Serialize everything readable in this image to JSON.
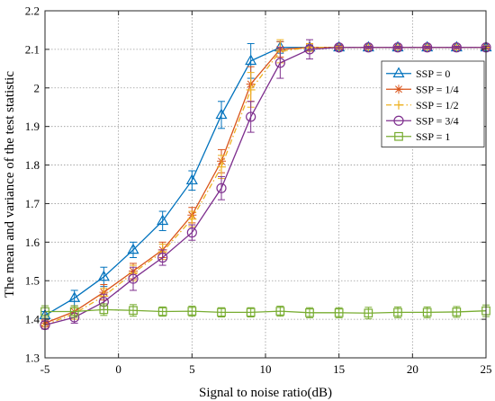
{
  "chart_data": {
    "type": "line",
    "title": "",
    "xlabel": "Signal to noise ratio(dB)",
    "ylabel": "The mean and variance of the test statistic",
    "xlim": [
      -5,
      25
    ],
    "ylim": [
      1.3,
      2.2
    ],
    "xticks": [
      -5,
      0,
      5,
      10,
      15,
      20,
      25
    ],
    "yticks": [
      1.3,
      1.4,
      1.5,
      1.6,
      1.7,
      1.8,
      1.9,
      2.0,
      2.1,
      2.2
    ],
    "ytick_labels": [
      "1.3",
      "1.4",
      "1.5",
      "1.6",
      "1.7",
      "1.8",
      "1.9",
      "2",
      "2.1",
      "2.2"
    ],
    "xtick_labels": [
      "-5",
      "0",
      "5",
      "10",
      "15",
      "20",
      "25"
    ],
    "grid": true,
    "legend_position": "top-right",
    "x": [
      -5,
      -3,
      -1,
      1,
      3,
      5,
      7,
      9,
      11,
      13,
      15,
      17,
      19,
      21,
      23,
      25
    ],
    "series": [
      {
        "name": "SSP = 0",
        "color": "#0072BD",
        "marker": "triangle",
        "dash": "solid",
        "values": [
          1.41,
          1.455,
          1.51,
          1.58,
          1.655,
          1.76,
          1.93,
          2.07,
          2.105,
          2.105,
          2.105,
          2.105,
          2.105,
          2.105,
          2.105,
          2.105
        ],
        "errors": [
          0.01,
          0.02,
          0.025,
          0.02,
          0.025,
          0.025,
          0.035,
          0.045,
          0.015,
          0.005,
          0.003,
          0.003,
          0.003,
          0.003,
          0.003,
          0.003
        ]
      },
      {
        "name": "SSP = 1/4",
        "color": "#D95319",
        "marker": "asterisk",
        "dash": "solid",
        "values": [
          1.39,
          1.42,
          1.47,
          1.525,
          1.58,
          1.67,
          1.81,
          2.01,
          2.1,
          2.105,
          2.105,
          2.105,
          2.105,
          2.105,
          2.105,
          2.105
        ],
        "errors": [
          0.01,
          0.015,
          0.02,
          0.02,
          0.02,
          0.02,
          0.03,
          0.045,
          0.02,
          0.01,
          0.003,
          0.003,
          0.003,
          0.003,
          0.003,
          0.003
        ]
      },
      {
        "name": "SSP = 1/2",
        "color": "#EDB120",
        "marker": "plus",
        "dash": "dashdot",
        "values": [
          1.385,
          1.415,
          1.46,
          1.52,
          1.575,
          1.66,
          1.795,
          1.995,
          2.095,
          2.105,
          2.105,
          2.105,
          2.105,
          2.105,
          2.105,
          2.105
        ],
        "errors": [
          0.01,
          0.015,
          0.02,
          0.02,
          0.02,
          0.02,
          0.03,
          0.045,
          0.03,
          0.01,
          0.003,
          0.003,
          0.003,
          0.003,
          0.003,
          0.003
        ]
      },
      {
        "name": "SSP = 3/4",
        "color": "#7E2F8E",
        "marker": "circle",
        "dash": "solid",
        "values": [
          1.385,
          1.405,
          1.445,
          1.505,
          1.56,
          1.625,
          1.74,
          1.925,
          2.065,
          2.1,
          2.105,
          2.105,
          2.105,
          2.105,
          2.105,
          2.105
        ],
        "errors": [
          0.01,
          0.015,
          0.02,
          0.03,
          0.02,
          0.02,
          0.03,
          0.04,
          0.04,
          0.025,
          0.005,
          0.003,
          0.003,
          0.003,
          0.003,
          0.003
        ]
      },
      {
        "name": "SSP = 1",
        "color": "#77AC30",
        "marker": "square",
        "dash": "solid",
        "values": [
          1.42,
          1.42,
          1.425,
          1.423,
          1.42,
          1.421,
          1.418,
          1.418,
          1.421,
          1.417,
          1.417,
          1.416,
          1.418,
          1.418,
          1.419,
          1.422
        ],
        "errors": [
          0.015,
          0.015,
          0.015,
          0.015,
          0.012,
          0.013,
          0.012,
          0.012,
          0.013,
          0.013,
          0.013,
          0.015,
          0.014,
          0.014,
          0.014,
          0.015
        ]
      }
    ]
  }
}
